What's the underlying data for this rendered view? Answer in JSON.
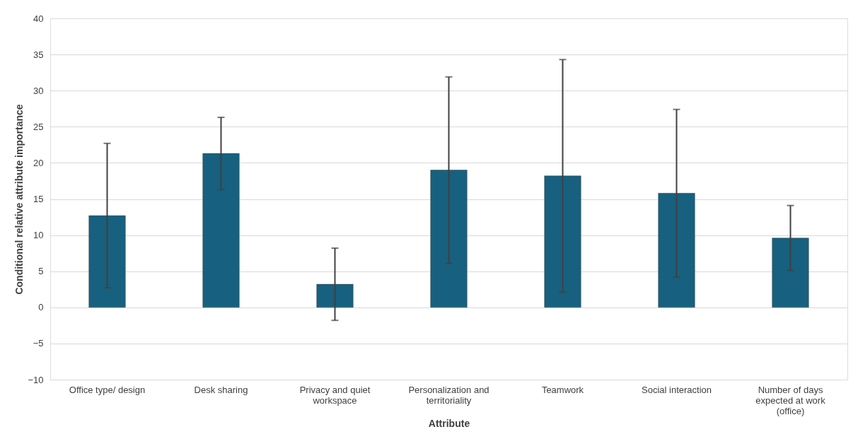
{
  "chart_data": {
    "type": "bar",
    "xlabel": "Attribute",
    "ylabel": "Conditional relative attribute importance",
    "categories": [
      "Office type/ design",
      "Desk sharing",
      "Privacy and quiet workspace",
      "Personalization and territoriality",
      "Teamwork",
      "Social interaction",
      "Number of days expected at work (office)"
    ],
    "values": [
      12.7,
      21.3,
      3.2,
      19.0,
      18.2,
      15.8,
      9.6
    ],
    "errors": [
      10.0,
      5.0,
      5.0,
      12.9,
      16.1,
      11.6,
      4.5
    ],
    "color": "#17607f",
    "ylim": [
      -10,
      40
    ],
    "yticks": [
      -10,
      -5,
      0,
      5,
      10,
      15,
      20,
      25,
      30,
      35,
      40
    ],
    "grid": "y"
  }
}
